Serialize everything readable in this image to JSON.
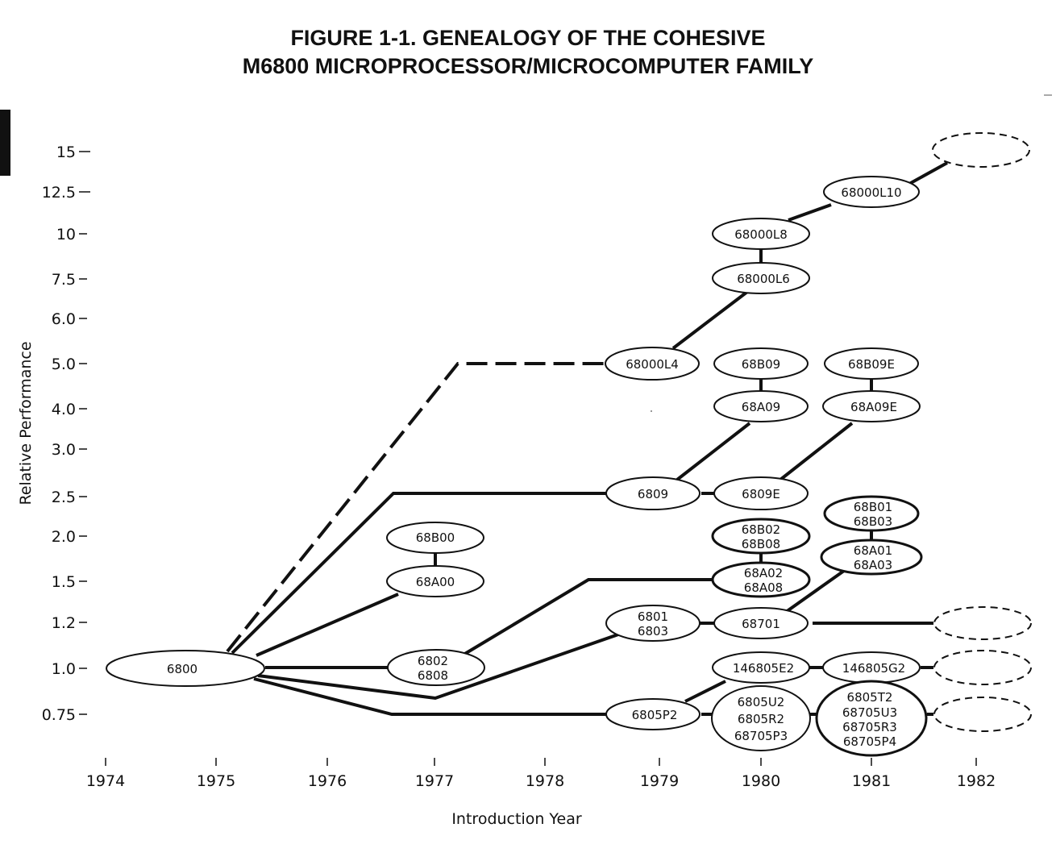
{
  "title": {
    "line1": "FIGURE 1-1. GENEALOGY OF THE COHESIVE",
    "line2": "M6800 MICROPROCESSOR/MICROCOMPUTER FAMILY"
  },
  "axes": {
    "y_label": "Relative Performance",
    "x_label": "Introduction Year",
    "y_ticks": [
      "15",
      "12.5",
      "10",
      "7.5",
      "6.0",
      "5.0",
      "4.0",
      "3.0",
      "2.5",
      "2.0",
      "1.5",
      "1.2",
      "1.0",
      "0.75"
    ],
    "x_ticks": [
      "1974",
      "1975",
      "1976",
      "1977",
      "1978",
      "1979",
      "1980",
      "1981",
      "1982"
    ]
  },
  "nodes": [
    {
      "id": "n6800",
      "lines": [
        "6800"
      ]
    },
    {
      "id": "n68B00",
      "lines": [
        "68B00"
      ]
    },
    {
      "id": "n68A00",
      "lines": [
        "68A00"
      ]
    },
    {
      "id": "n6802",
      "lines": [
        "6802",
        "6808"
      ]
    },
    {
      "id": "n68000L4",
      "lines": [
        "68000L4"
      ]
    },
    {
      "id": "n6809",
      "lines": [
        "6809"
      ]
    },
    {
      "id": "n6801",
      "lines": [
        "6801",
        "6803"
      ]
    },
    {
      "id": "n6805P2",
      "lines": [
        "6805P2"
      ]
    },
    {
      "id": "n68000L10",
      "lines": [
        "68000L10"
      ]
    },
    {
      "id": "n68000L8",
      "lines": [
        "68000L8"
      ]
    },
    {
      "id": "n68000L6",
      "lines": [
        "68000L6"
      ]
    },
    {
      "id": "n68B09",
      "lines": [
        "68B09"
      ]
    },
    {
      "id": "n68A09",
      "lines": [
        "68A09"
      ]
    },
    {
      "id": "n6809E",
      "lines": [
        "6809E"
      ]
    },
    {
      "id": "n68B02",
      "lines": [
        "68B02",
        "68B08"
      ]
    },
    {
      "id": "n68A02",
      "lines": [
        "68A02",
        "68A08"
      ]
    },
    {
      "id": "n68701",
      "lines": [
        "68701"
      ]
    },
    {
      "id": "n146805E2",
      "lines": [
        "146805E2"
      ]
    },
    {
      "id": "n6805U2",
      "lines": [
        "6805U2",
        "6805R2",
        "68705P3"
      ]
    },
    {
      "id": "n68B09E",
      "lines": [
        "68B09E"
      ]
    },
    {
      "id": "n68A09E",
      "lines": [
        "68A09E"
      ]
    },
    {
      "id": "n68B01",
      "lines": [
        "68B01",
        "68B03"
      ]
    },
    {
      "id": "n68A01",
      "lines": [
        "68A01",
        "68A03"
      ]
    },
    {
      "id": "n146805G2",
      "lines": [
        "146805G2"
      ]
    },
    {
      "id": "n6805T2",
      "lines": [
        "6805T2",
        "68705U3",
        "68705R3",
        "68705P4"
      ]
    },
    {
      "id": "future1",
      "lines": []
    },
    {
      "id": "future2",
      "lines": []
    },
    {
      "id": "future3",
      "lines": []
    },
    {
      "id": "future4",
      "lines": []
    }
  ]
}
